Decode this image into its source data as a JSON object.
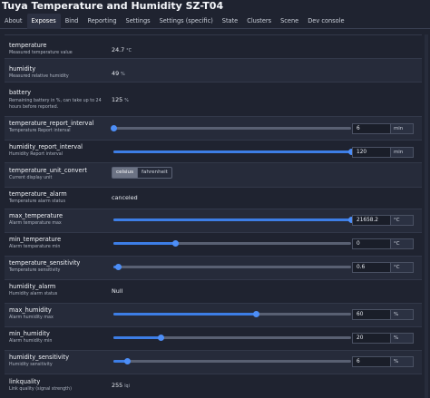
{
  "title": "Tuya Temperature and Humidity SZ-T04",
  "tabs": [
    "About",
    "Exposes",
    "Bind",
    "Reporting",
    "Settings",
    "Settings (specific)",
    "State",
    "Clusters",
    "Scene",
    "Dev console"
  ],
  "active_tab": "Exposes",
  "exposes": [
    {
      "label": "temperature",
      "desc": "Measured temperature value",
      "value": "24.7",
      "unit": "°C"
    },
    {
      "label": "humidity",
      "desc": "Measured relative humidity",
      "value": "49",
      "unit": "%"
    },
    {
      "label": "battery",
      "desc": "Remaining battery in %, can take up to 24 hours before reported.",
      "value": "125",
      "unit": "%"
    },
    {
      "label": "temperature_report_interval",
      "desc": "Temperature Report interval",
      "value": "6",
      "unit": "min",
      "level": 0.0
    },
    {
      "label": "humidity_report_interval",
      "desc": "Humidity Report interval",
      "value": "120",
      "unit": "min",
      "level": 1.0
    },
    {
      "label": "temperature_unit_convert",
      "desc": "Current display unit",
      "options": [
        "celsius",
        "fahrenheit"
      ],
      "selected": "celsius"
    },
    {
      "label": "temperature_alarm",
      "desc": "Temperature alarm status",
      "value": "canceled"
    },
    {
      "label": "max_temperature",
      "desc": "Alarm temperature max",
      "value": "21658.2",
      "unit": "°C",
      "level": 1.0
    },
    {
      "label": "min_temperature",
      "desc": "Alarm temperature min",
      "value": "0",
      "unit": "°C",
      "level": 0.26
    },
    {
      "label": "temperature_sensitivity",
      "desc": "Temperature sensitivity",
      "value": "0.6",
      "unit": "°C",
      "level": 0.02
    },
    {
      "label": "humidity_alarm",
      "desc": "Humidity alarm status",
      "value": "Null"
    },
    {
      "label": "max_humidity",
      "desc": "Alarm humidity max",
      "value": "60",
      "unit": "%",
      "level": 0.6
    },
    {
      "label": "min_humidity",
      "desc": "Alarm humidity min",
      "value": "20",
      "unit": "%",
      "level": 0.2
    },
    {
      "label": "humidity_sensitivity",
      "desc": "Humidity sensitivity",
      "value": "6",
      "unit": "%",
      "level": 0.06
    },
    {
      "label": "linkquality",
      "desc": "Link quality (signal strength)",
      "value": "255",
      "unit": "lqi"
    }
  ],
  "colors": {
    "background": "#1f2330",
    "accent": "#4d8ef7",
    "row_alt": "#262b3a"
  }
}
